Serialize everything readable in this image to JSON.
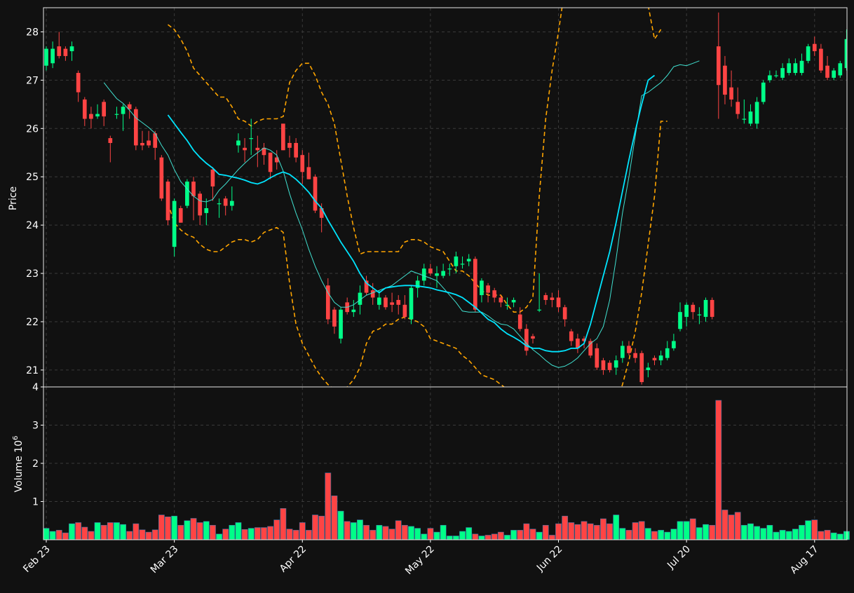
{
  "chart_data": {
    "type": "candlestick",
    "theme": {
      "background": "#111111",
      "up_color": "#00ff88",
      "down_color": "#ff4444",
      "sma_slow_color": "#00e5ff",
      "sma_fast_color": "#40e0d0",
      "band_color": "#ffa500",
      "grid": true
    },
    "price_panel": {
      "ylabel": "Price",
      "ylim": [
        20.65,
        28.5
      ],
      "yticks": [
        21,
        22,
        23,
        24,
        25,
        26,
        27,
        28
      ]
    },
    "volume_panel": {
      "ylabel": "Volume  10",
      "ylabel_exponent": "6",
      "ylim": [
        0,
        4
      ],
      "yticks": [
        1,
        2,
        3,
        4
      ]
    },
    "x_tick_labels": [
      {
        "label": "Feb 23",
        "index": 0
      },
      {
        "label": "Mar 23",
        "index": 20
      },
      {
        "label": "Apr 22",
        "index": 40
      },
      {
        "label": "May 22",
        "index": 60
      },
      {
        "label": "Jun 22",
        "index": 80
      },
      {
        "label": "Jul 20",
        "index": 100
      },
      {
        "label": "Aug 17",
        "index": 120
      }
    ],
    "candles": [
      [
        27.3,
        27.65,
        27.7,
        27.2,
        0.3
      ],
      [
        27.35,
        27.65,
        27.8,
        27.25,
        0.22
      ],
      [
        27.7,
        27.5,
        28.0,
        27.45,
        0.25
      ],
      [
        27.65,
        27.5,
        27.7,
        27.4,
        0.18
      ],
      [
        27.6,
        27.7,
        27.8,
        27.4,
        0.42
      ],
      [
        27.15,
        26.75,
        27.2,
        26.55,
        0.45
      ],
      [
        26.6,
        26.2,
        26.65,
        26.05,
        0.33
      ],
      [
        26.3,
        26.2,
        26.45,
        26.0,
        0.22
      ],
      [
        26.25,
        26.3,
        26.5,
        26.2,
        0.45
      ],
      [
        26.55,
        26.25,
        26.6,
        26.05,
        0.38
      ],
      [
        25.8,
        25.7,
        25.85,
        25.3,
        0.45
      ],
      [
        26.3,
        26.3,
        26.45,
        26.2,
        0.45
      ],
      [
        26.3,
        26.45,
        26.5,
        25.95,
        0.4
      ],
      [
        26.5,
        26.4,
        26.55,
        26.2,
        0.22
      ],
      [
        26.4,
        25.65,
        26.45,
        25.55,
        0.42
      ],
      [
        25.7,
        25.65,
        25.95,
        25.55,
        0.26
      ],
      [
        25.75,
        25.65,
        25.95,
        25.6,
        0.2
      ],
      [
        25.9,
        25.6,
        25.95,
        25.35,
        0.26
      ],
      [
        25.4,
        24.55,
        25.45,
        24.5,
        0.65
      ],
      [
        24.9,
        24.1,
        24.95,
        24.0,
        0.6
      ],
      [
        23.55,
        24.5,
        24.55,
        23.35,
        0.62
      ],
      [
        24.35,
        24.05,
        24.4,
        24.05,
        0.38
      ],
      [
        24.4,
        24.9,
        24.95,
        24.35,
        0.5
      ],
      [
        24.9,
        24.6,
        25.0,
        24.1,
        0.56
      ],
      [
        24.65,
        24.2,
        24.7,
        24.0,
        0.45
      ],
      [
        24.25,
        24.35,
        24.55,
        24.0,
        0.48
      ],
      [
        25.15,
        24.8,
        25.2,
        24.5,
        0.38
      ],
      [
        24.45,
        24.45,
        24.55,
        24.15,
        0.15
      ],
      [
        24.55,
        24.4,
        24.6,
        24.2,
        0.28
      ],
      [
        24.4,
        24.5,
        24.8,
        24.3,
        0.38
      ],
      [
        25.65,
        25.75,
        25.9,
        25.5,
        0.45
      ],
      [
        25.6,
        25.55,
        25.8,
        25.3,
        0.27
      ],
      [
        25.8,
        25.8,
        26.2,
        25.45,
        0.3
      ],
      [
        25.6,
        25.55,
        25.85,
        25.2,
        0.32
      ],
      [
        25.6,
        25.45,
        25.7,
        25.25,
        0.32
      ],
      [
        25.5,
        25.1,
        25.5,
        24.95,
        0.35
      ],
      [
        25.4,
        25.3,
        25.55,
        25.15,
        0.52
      ],
      [
        26.1,
        25.55,
        26.1,
        25.55,
        0.82
      ],
      [
        25.7,
        25.6,
        25.85,
        25.4,
        0.28
      ],
      [
        25.7,
        25.4,
        25.8,
        25.3,
        0.25
      ],
      [
        25.45,
        25.1,
        25.55,
        24.85,
        0.45
      ],
      [
        25.2,
        24.95,
        25.5,
        24.95,
        0.25
      ],
      [
        25.0,
        24.3,
        25.05,
        24.25,
        0.65
      ],
      [
        24.35,
        24.15,
        24.45,
        23.85,
        0.62
      ],
      [
        22.75,
        22.05,
        22.9,
        21.95,
        1.75
      ],
      [
        22.25,
        21.9,
        22.3,
        21.75,
        1.15
      ],
      [
        21.65,
        22.25,
        22.3,
        21.55,
        0.75
      ],
      [
        22.4,
        22.2,
        22.5,
        22.15,
        0.48
      ],
      [
        22.2,
        22.25,
        22.45,
        22.1,
        0.45
      ],
      [
        22.35,
        22.6,
        22.75,
        22.15,
        0.52
      ],
      [
        22.85,
        22.6,
        22.95,
        22.55,
        0.38
      ],
      [
        22.65,
        22.5,
        22.8,
        22.35,
        0.25
      ],
      [
        22.35,
        22.5,
        22.65,
        22.25,
        0.38
      ],
      [
        22.5,
        22.3,
        22.55,
        22.25,
        0.35
      ],
      [
        22.4,
        22.35,
        22.6,
        22.2,
        0.28
      ],
      [
        22.45,
        22.35,
        22.55,
        22.15,
        0.5
      ],
      [
        22.35,
        22.1,
        22.55,
        22.05,
        0.38
      ],
      [
        22.05,
        22.7,
        22.75,
        21.95,
        0.35
      ],
      [
        22.7,
        22.85,
        22.95,
        22.5,
        0.3
      ],
      [
        22.85,
        23.1,
        23.2,
        22.75,
        0.15
      ],
      [
        23.1,
        23.0,
        23.2,
        22.95,
        0.3
      ],
      [
        22.95,
        23.0,
        23.15,
        22.7,
        0.2
      ],
      [
        22.95,
        23.05,
        23.2,
        22.9,
        0.38
      ],
      [
        23.1,
        23.1,
        23.2,
        22.95,
        0.1
      ],
      [
        23.15,
        23.35,
        23.45,
        23.0,
        0.1
      ],
      [
        23.2,
        23.2,
        23.35,
        23.1,
        0.22
      ],
      [
        23.25,
        23.3,
        23.4,
        23.15,
        0.32
      ],
      [
        23.3,
        22.25,
        23.35,
        22.2,
        0.15
      ],
      [
        22.55,
        22.85,
        22.9,
        22.4,
        0.1
      ],
      [
        22.75,
        22.6,
        22.8,
        22.4,
        0.12
      ],
      [
        22.65,
        22.5,
        22.7,
        22.4,
        0.15
      ],
      [
        22.5,
        22.4,
        22.55,
        22.3,
        0.2
      ],
      [
        22.35,
        22.35,
        22.5,
        22.25,
        0.12
      ],
      [
        22.4,
        22.45,
        22.5,
        22.3,
        0.25
      ],
      [
        22.15,
        21.85,
        22.3,
        21.8,
        0.25
      ],
      [
        21.85,
        21.4,
        21.95,
        21.3,
        0.42
      ],
      [
        21.7,
        21.65,
        21.75,
        21.55,
        0.28
      ],
      [
        22.25,
        22.25,
        23.0,
        22.2,
        0.2
      ],
      [
        22.55,
        22.45,
        22.6,
        22.35,
        0.38
      ],
      [
        22.5,
        22.45,
        22.6,
        22.3,
        0.12
      ],
      [
        22.5,
        22.3,
        22.65,
        22.2,
        0.42
      ],
      [
        22.3,
        22.05,
        22.35,
        21.9,
        0.62
      ],
      [
        21.8,
        21.6,
        21.85,
        21.5,
        0.45
      ],
      [
        21.65,
        21.45,
        21.75,
        21.35,
        0.4
      ],
      [
        21.65,
        21.6,
        21.7,
        21.45,
        0.48
      ],
      [
        21.6,
        21.3,
        21.65,
        21.25,
        0.42
      ],
      [
        21.45,
        21.05,
        21.55,
        21.0,
        0.38
      ],
      [
        21.2,
        21.0,
        21.25,
        20.9,
        0.55
      ],
      [
        21.15,
        21.0,
        21.2,
        20.95,
        0.42
      ],
      [
        21.05,
        21.2,
        21.3,
        20.9,
        0.65
      ],
      [
        21.25,
        21.5,
        21.6,
        21.15,
        0.3
      ],
      [
        21.5,
        21.35,
        21.6,
        21.3,
        0.25
      ],
      [
        21.35,
        21.25,
        21.45,
        21.15,
        0.45
      ],
      [
        21.35,
        20.75,
        21.4,
        20.7,
        0.48
      ],
      [
        21.0,
        21.05,
        21.15,
        20.85,
        0.3
      ],
      [
        21.25,
        21.2,
        21.3,
        21.1,
        0.22
      ],
      [
        21.2,
        21.3,
        21.4,
        21.1,
        0.25
      ],
      [
        21.25,
        21.45,
        21.6,
        21.2,
        0.2
      ],
      [
        21.45,
        21.6,
        21.75,
        21.4,
        0.28
      ],
      [
        21.85,
        22.2,
        22.4,
        21.8,
        0.48
      ],
      [
        22.1,
        22.35,
        22.4,
        21.9,
        0.48
      ],
      [
        22.35,
        22.2,
        22.4,
        22.05,
        0.55
      ],
      [
        22.15,
        22.15,
        22.3,
        21.95,
        0.32
      ],
      [
        22.1,
        22.45,
        22.5,
        22.0,
        0.4
      ],
      [
        22.45,
        22.1,
        22.5,
        22.05,
        0.38
      ],
      [
        27.7,
        26.9,
        28.4,
        26.2,
        3.65
      ],
      [
        27.3,
        26.7,
        27.5,
        26.5,
        0.78
      ],
      [
        26.85,
        26.6,
        27.2,
        26.45,
        0.65
      ],
      [
        26.55,
        26.3,
        26.85,
        26.2,
        0.72
      ],
      [
        26.2,
        26.2,
        26.6,
        26.1,
        0.38
      ],
      [
        26.1,
        26.35,
        26.5,
        26.05,
        0.42
      ],
      [
        26.1,
        26.55,
        26.65,
        26.0,
        0.35
      ],
      [
        26.55,
        26.95,
        27.0,
        26.5,
        0.3
      ],
      [
        27.0,
        27.1,
        27.2,
        26.95,
        0.38
      ],
      [
        27.1,
        27.1,
        27.2,
        27.05,
        0.2
      ],
      [
        27.05,
        27.25,
        27.35,
        27.0,
        0.25
      ],
      [
        27.15,
        27.35,
        27.45,
        27.1,
        0.22
      ],
      [
        27.15,
        27.35,
        27.45,
        27.1,
        0.28
      ],
      [
        27.15,
        27.4,
        27.55,
        27.1,
        0.38
      ],
      [
        27.4,
        27.7,
        27.75,
        27.35,
        0.5
      ],
      [
        27.75,
        27.6,
        27.9,
        27.5,
        0.52
      ],
      [
        27.65,
        27.2,
        27.75,
        27.15,
        0.22
      ],
      [
        27.3,
        27.05,
        27.5,
        27.0,
        0.25
      ],
      [
        27.05,
        27.2,
        27.25,
        27.0,
        0.18
      ],
      [
        27.1,
        27.35,
        27.4,
        27.05,
        0.15
      ],
      [
        27.25,
        27.85,
        28.05,
        27.2,
        0.22
      ]
    ],
    "sma_fast": {
      "start": 9,
      "values": [
        26.95,
        26.78,
        26.62,
        26.52,
        26.38,
        26.22,
        26.12,
        26.02,
        25.9,
        25.65,
        25.45,
        25.15,
        24.9,
        24.75,
        24.6,
        24.5,
        24.48,
        24.53,
        24.72,
        24.85,
        25.0,
        25.15,
        25.28,
        25.4,
        25.5,
        25.6,
        25.55,
        25.45,
        25.12,
        24.65,
        24.25,
        23.9,
        23.5,
        23.15,
        22.85,
        22.6,
        22.4,
        22.3,
        22.3,
        22.35,
        22.45,
        22.55,
        22.6,
        22.65,
        22.7,
        22.75,
        22.85,
        22.95,
        23.05,
        23.0,
        22.95,
        22.9,
        22.85,
        22.7,
        22.55,
        22.4,
        22.22,
        22.2,
        22.2,
        22.2,
        22.12,
        22.02,
        21.95,
        21.93,
        21.85,
        21.7,
        21.55,
        21.42,
        21.32,
        21.2,
        21.1,
        21.05,
        21.08,
        21.15,
        21.25,
        21.4,
        21.55,
        21.65,
        21.9,
        22.45,
        23.3,
        24.25,
        25.0,
        25.85,
        26.68,
        26.75,
        26.85,
        26.95,
        27.1,
        27.28,
        27.32,
        27.3,
        27.35,
        27.4
      ]
    },
    "sma_slow": {
      "start": 19,
      "values": [
        26.28,
        26.1,
        25.92,
        25.75,
        25.55,
        25.4,
        25.28,
        25.18,
        25.05,
        25.03,
        25.0,
        24.97,
        24.93,
        24.88,
        24.85,
        24.9,
        24.98,
        25.05,
        25.1,
        25.05,
        24.95,
        24.82,
        24.68,
        24.5,
        24.35,
        24.1,
        23.88,
        23.65,
        23.45,
        23.25,
        23.0,
        22.8,
        22.7,
        22.6,
        22.7,
        22.72,
        22.74,
        22.75,
        22.75,
        22.74,
        22.72,
        22.7,
        22.66,
        22.63,
        22.6,
        22.56,
        22.5,
        22.4,
        22.3,
        22.18,
        22.05,
        21.98,
        21.85,
        21.75,
        21.68,
        21.6,
        21.5,
        21.45,
        21.45,
        21.4,
        21.38,
        21.38,
        21.4,
        21.45,
        21.45,
        21.55,
        21.95,
        22.45,
        22.95,
        23.45,
        24.05,
        24.7,
        25.35,
        25.95,
        26.5,
        27.0,
        27.1
      ]
    },
    "band_upper": {
      "start": 19,
      "values": [
        28.15,
        28.05,
        27.85,
        27.6,
        27.25,
        27.1,
        26.95,
        26.8,
        26.65,
        26.65,
        26.45,
        26.2,
        26.15,
        26.05,
        26.15,
        26.2,
        26.2,
        26.2,
        26.25,
        26.95,
        27.2,
        27.35,
        27.35,
        27.1,
        26.75,
        26.5,
        26.1,
        25.35,
        24.6,
        23.95,
        23.4,
        23.45,
        23.45,
        23.45,
        23.45,
        23.45,
        23.45,
        23.65,
        23.7,
        23.7,
        23.65,
        23.55,
        23.5,
        23.45,
        23.25,
        23.05,
        23.05,
        22.95,
        22.8,
        22.65,
        22.55,
        22.55,
        22.55,
        22.35,
        22.2,
        22.2,
        22.3,
        22.5,
        24.6,
        26.2,
        27.2,
        28.0,
        28.9,
        29.8,
        30.6,
        31.3,
        31.9,
        32.3,
        32.4,
        32.3,
        32.0,
        31.5,
        31.0,
        30.3,
        29.5,
        28.55,
        27.85,
        28.05
      ]
    },
    "band_lower": {
      "start": 19,
      "values": [
        24.45,
        24.05,
        23.9,
        23.8,
        23.75,
        23.6,
        23.5,
        23.45,
        23.45,
        23.55,
        23.65,
        23.7,
        23.7,
        23.65,
        23.7,
        23.85,
        23.9,
        23.95,
        23.85,
        22.8,
        21.95,
        21.55,
        21.3,
        21.05,
        20.85,
        20.7,
        20.6,
        20.6,
        20.65,
        20.8,
        21.05,
        21.55,
        21.8,
        21.85,
        21.95,
        21.95,
        22.05,
        22.1,
        22.05,
        22.0,
        21.9,
        21.65,
        21.6,
        21.55,
        21.5,
        21.45,
        21.3,
        21.2,
        21.05,
        20.9,
        20.85,
        20.8,
        20.7,
        20.6,
        20.55,
        20.5,
        20.45,
        20.4,
        20.35,
        20.3,
        20.2,
        20.05,
        19.85,
        19.7,
        19.6,
        19.55,
        19.5,
        19.55,
        19.7,
        19.95,
        20.3,
        20.7,
        21.2,
        21.8,
        22.6,
        23.6,
        24.6,
        26.15,
        26.15
      ]
    }
  }
}
